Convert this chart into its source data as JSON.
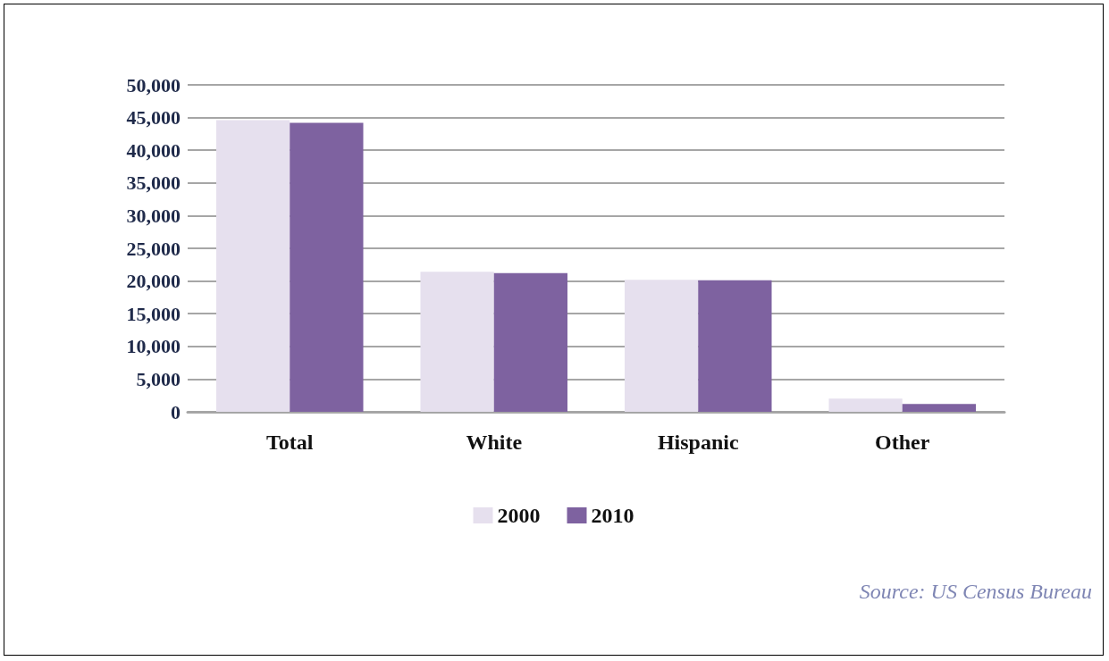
{
  "chart_data": {
    "type": "bar",
    "categories": [
      "Total",
      "White",
      "Hispanic",
      "Other"
    ],
    "series": [
      {
        "name": "2000",
        "color": "#e6e0ee",
        "values": [
          44600,
          21400,
          20200,
          2000
        ]
      },
      {
        "name": "2010",
        "color": "#7e62a0",
        "values": [
          44200,
          21200,
          20100,
          1200
        ]
      }
    ],
    "ylim": [
      0,
      50000
    ],
    "yticks": [
      {
        "value": 0,
        "label": "0"
      },
      {
        "value": 5000,
        "label": "5,000"
      },
      {
        "value": 10000,
        "label": "10,000"
      },
      {
        "value": 15000,
        "label": "15,000"
      },
      {
        "value": 20000,
        "label": "20,000"
      },
      {
        "value": 25000,
        "label": "25,000"
      },
      {
        "value": 30000,
        "label": "30,000"
      },
      {
        "value": 35000,
        "label": "35,000"
      },
      {
        "value": 40000,
        "label": "40,000"
      },
      {
        "value": 45000,
        "label": "45,000"
      },
      {
        "value": 50000,
        "label": "50,000"
      }
    ],
    "grid": "y",
    "legend": "bottom",
    "annotations": [
      "Source: US Census Bureau"
    ]
  }
}
